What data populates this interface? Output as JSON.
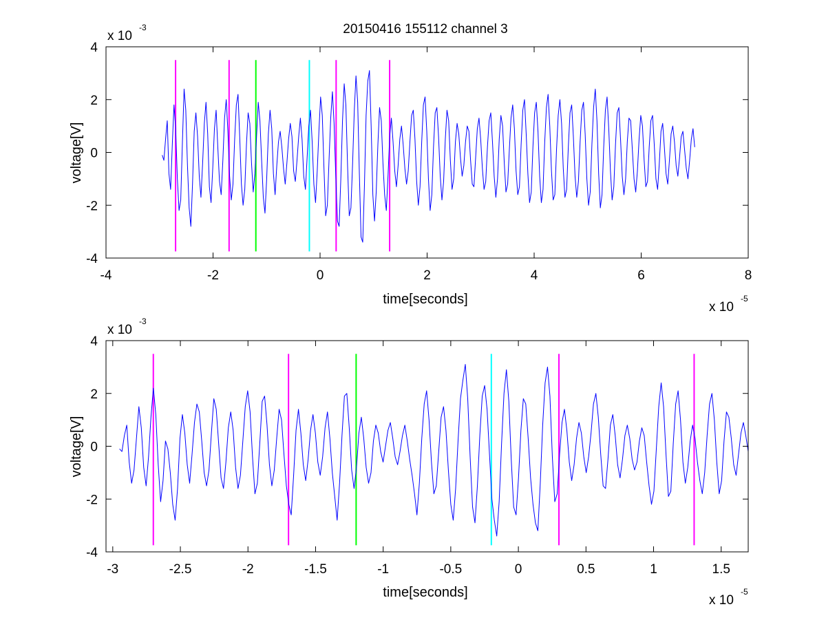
{
  "chart_data": [
    {
      "type": "line",
      "title": "20150416 155112 channel 3",
      "xlabel": "time[seconds]",
      "ylabel": "voltage[V]",
      "x_exponent_label": "x 10",
      "x_exponent": "-5",
      "y_exponent_label": "x 10",
      "y_exponent": "-3",
      "xlim": [
        -4,
        8
      ],
      "ylim": [
        -4,
        4
      ],
      "xticks": [
        -4,
        -2,
        0,
        2,
        4,
        6,
        8
      ],
      "xtick_labels": [
        "-4",
        "-2",
        "0",
        "2",
        "4",
        "6",
        "8"
      ],
      "yticks": [
        -4,
        -2,
        0,
        2,
        4
      ],
      "ytick_labels": [
        "-4",
        "-2",
        "0",
        "2",
        "4"
      ],
      "grid": false,
      "series": [
        {
          "color": "#0000ff",
          "x_start": -2.95,
          "x_end": 7.0,
          "values": [
            -0.1,
            -0.3,
            0.5,
            1.2,
            -0.8,
            -1.4,
            0.3,
            1.8,
            0.9,
            -1.0,
            -2.2,
            -1.8,
            0.4,
            2.4,
            1.6,
            -0.5,
            -2.1,
            -2.8,
            -1.2,
            0.8,
            1.5,
            0.6,
            -0.9,
            -1.7,
            -0.4,
            1.1,
            1.9,
            0.7,
            -1.3,
            -1.9,
            -0.6,
            0.9,
            1.6,
            0.2,
            -1.1,
            -1.6,
            -0.3,
            1.3,
            2.0,
            0.8,
            -0.9,
            -1.8,
            -1.2,
            0.5,
            1.8,
            2.2,
            0.6,
            -1.2,
            -2.0,
            -1.4,
            0.3,
            1.5,
            1.1,
            -0.4,
            -1.5,
            -0.8,
            0.6,
            1.9,
            1.2,
            -0.3,
            -1.7,
            -2.3,
            -1.0,
            0.7,
            1.6,
            0.9,
            -0.8,
            -1.6,
            -0.5,
            0.4,
            0.8,
            0.2,
            -0.6,
            -1.2,
            -0.4,
            0.5,
            1.1,
            0.6,
            -0.7,
            -1.1,
            -0.3,
            0.6,
            1.3,
            0.5,
            -0.9,
            -1.4,
            -0.2,
            1.0,
            1.6,
            0.4,
            -1.2,
            -1.9,
            -0.7,
            0.8,
            2.1,
            1.4,
            -0.6,
            -2.4,
            -2.0,
            -0.3,
            1.3,
            2.3,
            1.1,
            -0.9,
            -2.6,
            -2.8,
            -1.0,
            1.2,
            2.6,
            1.8,
            -0.5,
            -2.4,
            -2.1,
            -0.4,
            1.6,
            2.9,
            1.9,
            -0.8,
            -3.2,
            -3.4,
            -1.3,
            1.4,
            2.7,
            3.1,
            1.0,
            -1.6,
            -2.6,
            -1.5,
            0.3,
            1.7,
            1.2,
            -0.4,
            -1.6,
            -2.2,
            -0.9,
            0.6,
            1.3,
            0.4,
            -0.7,
            -1.3,
            -0.5,
            0.5,
            1.0,
            0.3,
            -0.6,
            -1.2,
            -0.7,
            0.4,
            1.4,
            1.6,
            0.5,
            -1.1,
            -2.0,
            -1.3,
            0.4,
            1.8,
            2.1,
            0.8,
            -1.0,
            -2.2,
            -1.6,
            0.2,
            1.5,
            1.7,
            0.6,
            -0.9,
            -1.8,
            -1.1,
            0.5,
            1.6,
            1.2,
            -0.3,
            -1.4,
            -1.0,
            0.4,
            1.1,
            0.7,
            -0.2,
            -0.9,
            -0.5,
            0.4,
            1.0,
            0.8,
            -0.3,
            -1.2,
            -1.3,
            -0.2,
            0.9,
            1.3,
            0.5,
            -0.6,
            -1.4,
            -1.1,
            0.2,
            1.2,
            1.5,
            0.4,
            -0.9,
            -1.7,
            -1.0,
            0.5,
            1.4,
            1.0,
            -0.4,
            -1.5,
            -1.2,
            0.1,
            1.3,
            1.8,
            0.9,
            -0.7,
            -1.6,
            -1.3,
            0.3,
            1.6,
            2.0,
            0.7,
            -0.8,
            -1.9,
            -1.5,
            0.2,
            1.5,
            1.9,
            0.8,
            -0.9,
            -1.9,
            -1.4,
            0.4,
            1.7,
            2.2,
            1.0,
            -0.7,
            -1.8,
            -1.6,
            0.1,
            1.4,
            2.0,
            1.1,
            -0.6,
            -1.7,
            -1.4,
            0.2,
            1.5,
            1.8,
            0.6,
            -0.9,
            -1.7,
            -1.1,
            0.4,
            1.6,
            1.9,
            0.7,
            -1.0,
            -2.0,
            -1.5,
            0.3,
            1.7,
            2.4,
            1.2,
            -0.8,
            -2.1,
            -1.6,
            0.2,
            1.6,
            2.1,
            0.9,
            -0.7,
            -1.8,
            -1.3,
            0.3,
            1.5,
            1.7,
            0.5,
            -0.9,
            -1.6,
            -1.0,
            0.4,
            1.3,
            1.2,
            0.1,
            -1.0,
            -1.5,
            -0.7,
            0.5,
            1.4,
            1.0,
            -0.3,
            -1.3,
            -1.1,
            0.2,
            1.2,
            1.4,
            0.3,
            -1.0,
            -1.4,
            -0.4,
            0.8,
            1.1,
            0.2,
            -0.8,
            -1.2,
            -0.3,
            0.7,
            1.0,
            0.4,
            -0.5,
            -0.9,
            -0.2,
            0.6,
            0.8,
            0.1,
            -0.6,
            -1.0,
            -0.3,
            0.5,
            0.9,
            0.2
          ]
        }
      ],
      "markers": [
        {
          "x": -2.7,
          "color": "#ff00ff"
        },
        {
          "x": -1.7,
          "color": "#ff00ff"
        },
        {
          "x": -1.2,
          "color": "#00ff00"
        },
        {
          "x": -0.2,
          "color": "#00ffff"
        },
        {
          "x": 0.3,
          "color": "#ff00ff"
        },
        {
          "x": 1.3,
          "color": "#ff00ff"
        }
      ],
      "marker_ylim": [
        -3.75,
        3.5
      ]
    },
    {
      "type": "line",
      "title": "",
      "xlabel": "time[seconds]",
      "ylabel": "voltage[V]",
      "x_exponent_label": "x 10",
      "x_exponent": "-5",
      "y_exponent_label": "x 10",
      "y_exponent": "-3",
      "xlim": [
        -3.05,
        1.7
      ],
      "ylim": [
        -4,
        4
      ],
      "xticks": [
        -3,
        -2.5,
        -2,
        -1.5,
        -1,
        -0.5,
        0,
        0.5,
        1,
        1.5
      ],
      "xtick_labels": [
        "-3",
        "-2.5",
        "-2",
        "-1.5",
        "-1",
        "-0.5",
        "0",
        "0.5",
        "1",
        "1.5"
      ],
      "yticks": [
        -4,
        -2,
        0,
        2,
        4
      ],
      "ytick_labels": [
        "-4",
        "-2",
        "0",
        "2",
        "4"
      ],
      "grid": false,
      "series": [
        {
          "color": "#0000ff",
          "x_start": -2.95,
          "x_end": 1.7,
          "values": [
            -0.1,
            -0.2,
            0.4,
            0.8,
            -0.6,
            -1.4,
            -0.9,
            0.3,
            1.5,
            0.7,
            -0.8,
            -1.5,
            -0.4,
            1.1,
            2.2,
            1.2,
            -0.7,
            -2.1,
            -1.3,
            0.2,
            -0.1,
            -1.0,
            -2.2,
            -2.8,
            -1.6,
            0.3,
            1.2,
            0.5,
            -0.7,
            -1.4,
            -0.3,
            0.9,
            1.6,
            1.3,
            0.2,
            -1.0,
            -1.5,
            -0.9,
            0.5,
            1.8,
            1.4,
            0.1,
            -1.2,
            -1.6,
            -0.6,
            0.7,
            1.3,
            0.6,
            -0.8,
            -1.6,
            -1.1,
            0.2,
            1.5,
            2.1,
            1.3,
            -0.4,
            -1.8,
            -1.4,
            0.1,
            1.7,
            1.9,
            0.8,
            -0.7,
            -1.5,
            -0.9,
            0.3,
            1.4,
            1.0,
            -0.3,
            -1.5,
            -2.2,
            -2.6,
            -1.1,
            0.6,
            1.4,
            0.5,
            -0.7,
            -1.3,
            -0.5,
            0.6,
            1.2,
            0.5,
            -0.6,
            -1.1,
            -0.4,
            0.7,
            1.3,
            0.3,
            -1.0,
            -1.9,
            -2.8,
            -1.4,
            0.4,
            1.9,
            2.0,
            0.7,
            -0.9,
            -1.6,
            -0.8,
            0.5,
            1.1,
            0.3,
            -0.8,
            -1.4,
            -1.0,
            0.2,
            0.8,
            0.5,
            -0.2,
            -0.6,
            0.0,
            0.6,
            0.9,
            0.3,
            -0.4,
            -0.7,
            -0.2,
            0.4,
            0.8,
            0.2,
            -0.5,
            -1.1,
            -1.8,
            -2.6,
            -1.4,
            0.3,
            1.6,
            2.1,
            1.0,
            -0.6,
            -1.8,
            -1.5,
            -0.2,
            1.1,
            1.5,
            0.6,
            -0.9,
            -2.2,
            -2.8,
            -1.6,
            0.2,
            1.8,
            2.5,
            3.1,
            1.8,
            -0.4,
            -2.3,
            -2.9,
            -1.5,
            0.4,
            1.9,
            2.3,
            1.4,
            -0.3,
            -2.0,
            -2.8,
            -3.4,
            -2.1,
            0.1,
            2.0,
            2.9,
            1.7,
            -0.5,
            -2.3,
            -2.6,
            -1.2,
            0.6,
            1.8,
            1.6,
            0.3,
            -1.2,
            -2.2,
            -2.9,
            -3.2,
            -1.4,
            0.8,
            2.4,
            3.0,
            1.9,
            -0.4,
            -2.1,
            -1.8,
            -0.3,
            0.9,
            1.4,
            0.6,
            -0.6,
            -1.3,
            -0.7,
            0.3,
            0.9,
            0.5,
            -0.4,
            -1.0,
            -0.4,
            0.5,
            1.6,
            2.0,
            1.1,
            -0.3,
            -1.5,
            -1.6,
            -0.5,
            0.8,
            1.2,
            0.4,
            -0.7,
            -1.2,
            -0.5,
            0.4,
            0.8,
            0.3,
            -0.5,
            -0.9,
            -0.6,
            0.2,
            0.7,
            0.4,
            -0.6,
            -1.5,
            -2.2,
            -1.7,
            -0.1,
            1.5,
            2.4,
            1.5,
            -0.3,
            -1.9,
            -1.7,
            0.1,
            1.6,
            2.1,
            1.0,
            -0.6,
            -1.4,
            -0.8,
            0.2,
            0.8,
            0.3,
            -0.6,
            -1.3,
            -1.8,
            -1.0,
            0.4,
            1.6,
            2.0,
            1.0,
            -0.6,
            -1.8,
            -1.3,
            0.2,
            1.3,
            1.1,
            0.3,
            -0.7,
            -1.1,
            -0.3,
            0.5,
            0.9,
            0.4,
            -0.2
          ]
        }
      ],
      "markers": [
        {
          "x": -2.7,
          "color": "#ff00ff"
        },
        {
          "x": -1.7,
          "color": "#ff00ff"
        },
        {
          "x": -1.2,
          "color": "#00ff00"
        },
        {
          "x": -0.2,
          "color": "#00ffff"
        },
        {
          "x": 0.3,
          "color": "#ff00ff"
        },
        {
          "x": 1.3,
          "color": "#ff00ff"
        }
      ],
      "marker_ylim": [
        -3.75,
        3.5
      ]
    }
  ]
}
